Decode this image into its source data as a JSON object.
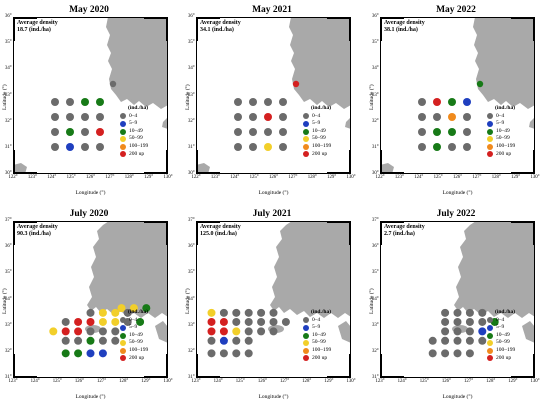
{
  "panels": [
    {
      "id": "p1",
      "title": "May 2020",
      "avg_label": "Average density",
      "avg_value": "18.7 (ind./ha)",
      "layout": "A",
      "yticks": [
        "36°",
        "35°",
        "34°",
        "33°",
        "32°",
        "31°",
        "30°"
      ],
      "xticks": [
        "122°",
        "123°",
        "124°",
        "125°",
        "126°",
        "127°",
        "128°",
        "129°",
        "130°"
      ],
      "island_dot": "gray",
      "stations": [
        [
          "gray",
          "gray",
          "green",
          "green"
        ],
        [
          "gray",
          "gray",
          "gray",
          "gray"
        ],
        [
          "gray",
          "green",
          "gray",
          "red"
        ],
        [
          "gray",
          "blue",
          "gray",
          "gray"
        ]
      ]
    },
    {
      "id": "p2",
      "title": "May 2021",
      "avg_label": "Average density",
      "avg_value": "34.1 (ind./ha)",
      "layout": "A",
      "yticks": [
        "36°",
        "35°",
        "34°",
        "33°",
        "32°",
        "31°",
        "30°"
      ],
      "xticks": [
        "122°",
        "123°",
        "124°",
        "125°",
        "126°",
        "127°",
        "128°",
        "129°",
        "130°"
      ],
      "island_dot": "red",
      "stations": [
        [
          "gray",
          "gray",
          "gray",
          "gray"
        ],
        [
          "gray",
          "gray",
          "red",
          "gray"
        ],
        [
          "gray",
          "gray",
          "gray",
          "gray"
        ],
        [
          "gray",
          "gray",
          "yellow",
          "gray"
        ]
      ]
    },
    {
      "id": "p3",
      "title": "May 2022",
      "avg_label": "Average density",
      "avg_value": "38.1 (ind./ha)",
      "layout": "A",
      "yticks": [
        "36°",
        "35°",
        "34°",
        "33°",
        "32°",
        "31°",
        "30°"
      ],
      "xticks": [
        "122°",
        "123°",
        "124°",
        "125°",
        "126°",
        "127°",
        "128°",
        "129°",
        "130°"
      ],
      "island_dot": "green",
      "stations": [
        [
          "gray",
          "red",
          "green",
          "blue"
        ],
        [
          "gray",
          "gray",
          "orange",
          "gray"
        ],
        [
          "gray",
          "green",
          "green",
          "gray"
        ],
        [
          "gray",
          "green",
          "gray",
          "gray"
        ]
      ]
    },
    {
      "id": "p4",
      "title": "July 2020",
      "avg_label": "Average density",
      "avg_value": "90.3 (ind./ha)",
      "layout": "B",
      "yticks": [
        "37°",
        "36°",
        "35°",
        "34°",
        "33°",
        "32°",
        "31°"
      ],
      "xticks": [
        "123°",
        "124°",
        "125°",
        "126°",
        "127°",
        "128°",
        "129°",
        "130°"
      ],
      "rows": [
        {
          "y": 0.555,
          "x": [
            0.7,
            0.78,
            0.86
          ],
          "c": [
            "yellow",
            "yellow",
            "green"
          ]
        },
        {
          "y": 0.585,
          "x": [
            0.5,
            0.58,
            0.66,
            0.74
          ],
          "c": [
            "gray",
            "yellow",
            "yellow",
            "gray"
          ]
        },
        {
          "y": 0.643,
          "x": [
            0.34,
            0.42,
            0.5,
            0.58,
            0.66,
            0.74,
            0.82
          ],
          "c": [
            "gray",
            "red",
            "red",
            "yellow",
            "yellow",
            "gray",
            "green"
          ]
        },
        {
          "y": 0.703,
          "x": [
            0.26,
            0.34,
            0.42,
            0.5,
            0.58,
            0.66
          ],
          "c": [
            "yellow",
            "red",
            "red",
            "gray",
            "gray",
            "gray"
          ]
        },
        {
          "y": 0.763,
          "x": [
            0.34,
            0.42,
            0.5,
            0.58,
            0.66
          ],
          "c": [
            "gray",
            "gray",
            "green",
            "gray",
            "gray"
          ]
        },
        {
          "y": 0.843,
          "x": [
            0.34,
            0.42,
            0.5,
            0.58
          ],
          "c": [
            "green",
            "green",
            "blue",
            "blue"
          ]
        }
      ]
    },
    {
      "id": "p5",
      "title": "July 2021",
      "avg_label": "Average density",
      "avg_value": "125.0 (ind./ha)",
      "layout": "B",
      "yticks": [
        "37°",
        "36°",
        "35°",
        "34°",
        "33°",
        "32°",
        "31°"
      ],
      "xticks": [
        "123°",
        "124°",
        "125°",
        "126°",
        "127°",
        "128°",
        "129°",
        "130°"
      ],
      "rows": [
        {
          "y": 0.585,
          "x": [
            0.1,
            0.18,
            0.26,
            0.34,
            0.42,
            0.5
          ],
          "c": [
            "yellow",
            "gray",
            "gray",
            "gray",
            "gray",
            "gray"
          ]
        },
        {
          "y": 0.643,
          "x": [
            0.1,
            0.18,
            0.26,
            0.34,
            0.42,
            0.5,
            0.58
          ],
          "c": [
            "red",
            "red",
            "gray",
            "gray",
            "gray",
            "gray",
            "gray"
          ]
        },
        {
          "y": 0.703,
          "x": [
            0.1,
            0.18,
            0.26,
            0.34,
            0.42,
            0.5
          ],
          "c": [
            "red",
            "red",
            "yellow",
            "gray",
            "gray",
            "gray"
          ]
        },
        {
          "y": 0.763,
          "x": [
            0.1,
            0.18,
            0.26,
            0.34
          ],
          "c": [
            "gray",
            "blue",
            "gray",
            "gray"
          ]
        },
        {
          "y": 0.843,
          "x": [
            0.1,
            0.18,
            0.26,
            0.34
          ],
          "c": [
            "gray",
            "gray",
            "gray",
            "gray"
          ]
        }
      ]
    },
    {
      "id": "p6",
      "title": "July 2022",
      "avg_label": "Average density",
      "avg_value": "2.7 (ind./ha)",
      "layout": "B",
      "yticks": [
        "37°",
        "36°",
        "35°",
        "34°",
        "33°",
        "32°",
        "31°"
      ],
      "xticks": [
        "123°",
        "124°",
        "125°",
        "126°",
        "127°",
        "128°",
        "129°",
        "130°"
      ],
      "rows": [
        {
          "y": 0.585,
          "x": [
            0.42,
            0.5,
            0.58,
            0.66
          ],
          "c": [
            "gray",
            "gray",
            "gray",
            "gray"
          ]
        },
        {
          "y": 0.643,
          "x": [
            0.42,
            0.5,
            0.58,
            0.66,
            0.74
          ],
          "c": [
            "gray",
            "gray",
            "gray",
            "gray",
            "green"
          ]
        },
        {
          "y": 0.703,
          "x": [
            0.42,
            0.5,
            0.58,
            0.66
          ],
          "c": [
            "gray",
            "gray",
            "gray",
            "blue"
          ]
        },
        {
          "y": 0.763,
          "x": [
            0.34,
            0.42,
            0.5,
            0.58,
            0.66
          ],
          "c": [
            "gray",
            "gray",
            "gray",
            "gray",
            "gray"
          ]
        },
        {
          "y": 0.843,
          "x": [
            0.34,
            0.42,
            0.5,
            0.58
          ],
          "c": [
            "gray",
            "gray",
            "gray",
            "gray"
          ]
        }
      ]
    }
  ],
  "axis": {
    "ylabel": "Latitude (°)",
    "xlabel": "Longitude (°)"
  },
  "legend": {
    "title": "(ind./ha)",
    "items": [
      {
        "label": "0–4",
        "color": "#6b6b6b"
      },
      {
        "label": "5–9",
        "color": "#1f3fbf"
      },
      {
        "label": "10–49",
        "color": "#177a17"
      },
      {
        "label": "50–99",
        "color": "#f2cf2a"
      },
      {
        "label": "100–199",
        "color": "#f08a1c"
      },
      {
        "label": "200 up",
        "color": "#d42020"
      }
    ]
  },
  "colors": {
    "gray": "#6b6b6b",
    "blue": "#1f3fbf",
    "green": "#177a17",
    "yellow": "#f2cf2a",
    "orange": "#f08a1c",
    "red": "#d42020",
    "land": "#a9a9a9"
  }
}
